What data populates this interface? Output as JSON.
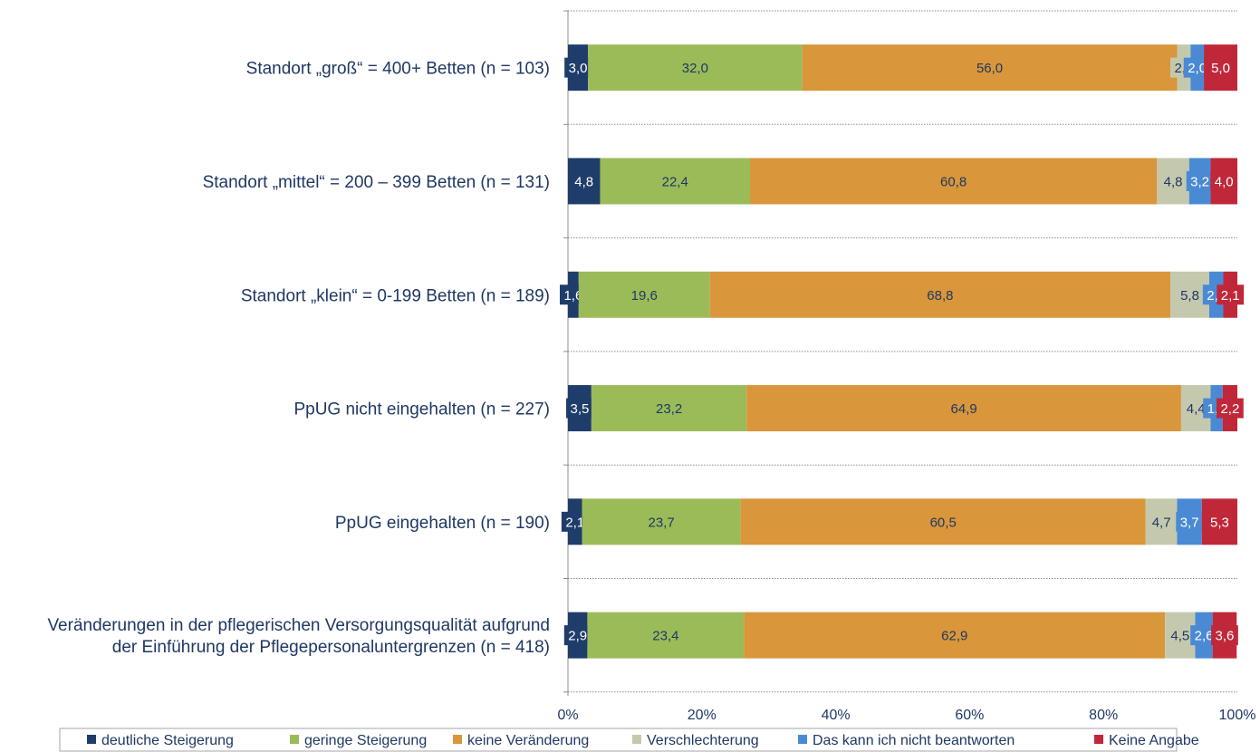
{
  "chart_data": {
    "type": "bar",
    "orientation": "horizontal",
    "stacked": true,
    "categories": [
      [
        "Standort „groß“ = 400+ Betten (n = 103)"
      ],
      [
        "Standort „mittel“ = 200 – 399 Betten (n = 131)"
      ],
      [
        "Standort „klein“ = 0-199 Betten (n = 189)"
      ],
      [
        "PpUG nicht eingehalten (n = 227)"
      ],
      [
        "PpUG eingehalten (n = 190)"
      ],
      [
        "Veränderungen in der pflegerischen Versorgungsqualität aufgrund",
        "der Einführung der Pflegepersonaluntergrenzen (n = 418)"
      ]
    ],
    "series": [
      {
        "name": "deutliche Steigerung",
        "color": "#1f3d6b",
        "values": [
          3.0,
          4.8,
          1.6,
          3.5,
          2.1,
          2.9
        ],
        "labels": [
          "3,0",
          "4,8",
          "1,6",
          "3,5",
          "2,1",
          "2,9"
        ]
      },
      {
        "name": "geringe Steigerung",
        "color": "#9bbb59",
        "values": [
          32.0,
          22.4,
          19.6,
          23.2,
          23.7,
          23.4
        ],
        "labels": [
          "32,0",
          "22,4",
          "19,6",
          "23,2",
          "23,7",
          "23,4"
        ]
      },
      {
        "name": "keine Veränderung",
        "color": "#d9963a",
        "values": [
          56.0,
          60.8,
          68.8,
          64.9,
          60.5,
          62.9
        ],
        "labels": [
          "56,0",
          "60,8",
          "68,8",
          "64,9",
          "60,5",
          "62,9"
        ]
      },
      {
        "name": "Verschlechterung",
        "color": "#c4c9ad",
        "values": [
          2.0,
          4.8,
          5.8,
          4.4,
          4.7,
          4.5
        ],
        "labels": [
          "2,0",
          "4,8",
          "5,8",
          "4,4",
          "4,7",
          "4,5"
        ]
      },
      {
        "name": "Das kann ich nicht beantworten",
        "color": "#4a8ad4",
        "values": [
          2.0,
          3.2,
          2.1,
          1.8,
          3.7,
          2.6
        ],
        "labels": [
          "2,0",
          "3,2",
          "2,1",
          "1,8",
          "3,7",
          "2,6"
        ]
      },
      {
        "name": "Keine Angabe",
        "color": "#c0283a",
        "values": [
          5.0,
          4.0,
          2.1,
          2.2,
          5.3,
          3.6
        ],
        "labels": [
          "5,0",
          "4,0",
          "2,1",
          "2,2",
          "5,3",
          "3,6"
        ]
      }
    ],
    "x_ticks": [
      "0%",
      "20%",
      "40%",
      "60%",
      "80%",
      "100%"
    ],
    "xlim": [
      0,
      100
    ],
    "grid": true,
    "legend_position": "bottom"
  }
}
